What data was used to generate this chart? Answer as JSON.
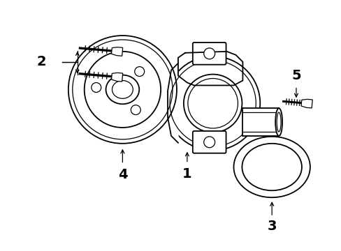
{
  "background_color": "#ffffff",
  "line_color": "#000000",
  "lw": 1.3,
  "tlw": 0.9,
  "fig_width": 4.89,
  "fig_height": 3.6,
  "dpi": 100
}
